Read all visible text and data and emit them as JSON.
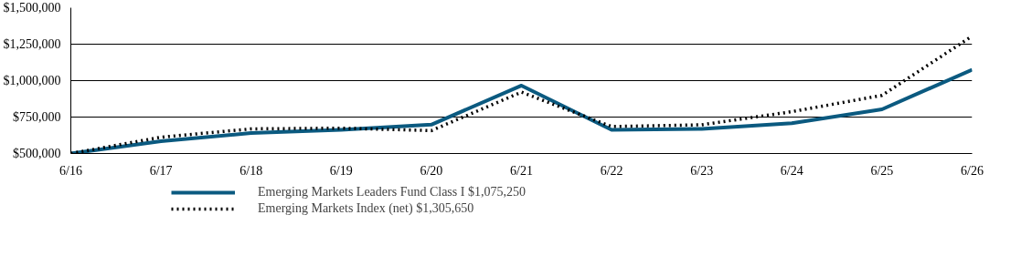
{
  "chart_data": {
    "type": "line",
    "categories": [
      "6/16",
      "6/17",
      "6/18",
      "6/19",
      "6/20",
      "6/21",
      "6/22",
      "6/23",
      "6/24",
      "6/25",
      "6/26"
    ],
    "series": [
      {
        "name": "Emerging Markets Leaders Fund Class I $1,075,250",
        "color": "#0b5a80",
        "line_style": "solid",
        "values": [
          500000,
          584000,
          640000,
          663000,
          698000,
          966000,
          663000,
          669000,
          708000,
          803000,
          1075250
        ]
      },
      {
        "name": "Emerging Markets Index (net) $1,305,650",
        "color": "#000000",
        "line_style": "dotted",
        "values": [
          500000,
          612000,
          669000,
          674000,
          657000,
          921000,
          685000,
          697000,
          787000,
          899000,
          1305650
        ]
      }
    ],
    "ylim": [
      500000,
      1500000
    ],
    "yticks": [
      {
        "value": 500000,
        "label": "$500,000"
      },
      {
        "value": 750000,
        "label": "$750,000"
      },
      {
        "value": 1000000,
        "label": "$1,000,000"
      },
      {
        "value": 1250000,
        "label": "$1,250,000"
      },
      {
        "value": 1500000,
        "label": "$1,500,000"
      }
    ],
    "grid": "y",
    "legend": "bottom",
    "marker": "none"
  }
}
